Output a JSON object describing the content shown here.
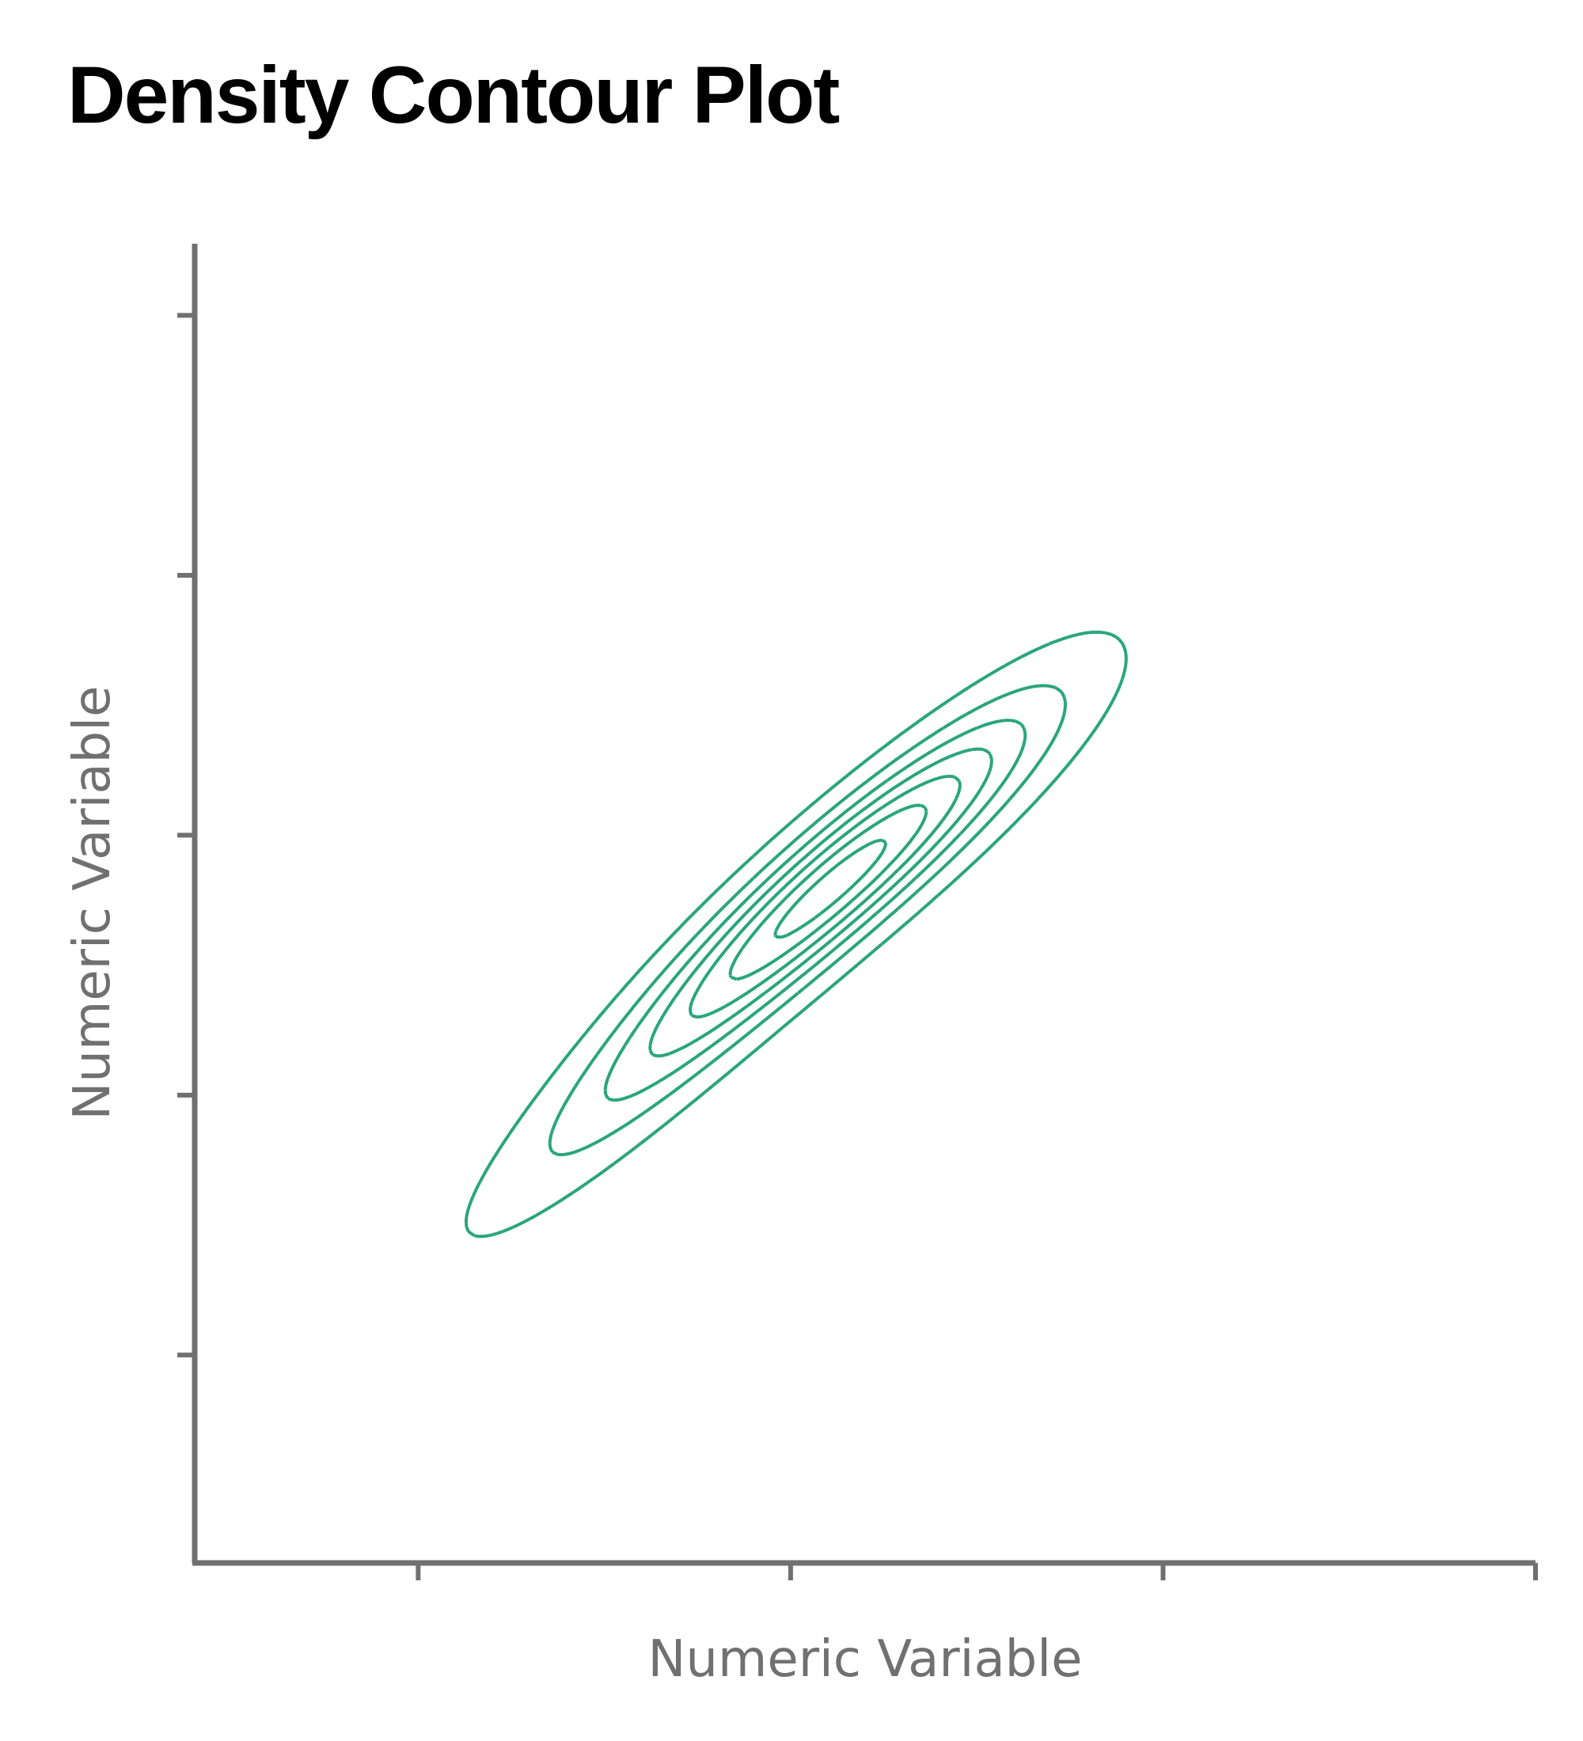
{
  "chart_data": {
    "type": "contour",
    "title": "Density Contour Plot",
    "xlabel": "Numeric Variable",
    "ylabel": "Numeric Variable",
    "xlim": [
      0,
      3.6
    ],
    "ylim": [
      0,
      5.1
    ],
    "x_ticks": [
      0.6,
      1.6,
      2.6,
      3.6
    ],
    "y_ticks": [
      0.8,
      1.8,
      2.8,
      3.8,
      4.8
    ],
    "tick_labels_shown": false,
    "grid": false,
    "legend": "none",
    "color": "#2aa57d",
    "density": {
      "distribution": "bivariate gaussian mixture",
      "components": [
        {
          "weight": 0.55,
          "mean": [
            1.5,
            2.32
          ],
          "sd": [
            0.42,
            0.58
          ],
          "rho": 0.95
        },
        {
          "weight": 0.45,
          "mean": [
            1.83,
            2.73
          ],
          "sd": [
            0.34,
            0.4
          ],
          "rho": 0.9
        }
      ],
      "levels": [
        0.1,
        0.24,
        0.38,
        0.52,
        0.66,
        0.8,
        0.93
      ]
    }
  }
}
